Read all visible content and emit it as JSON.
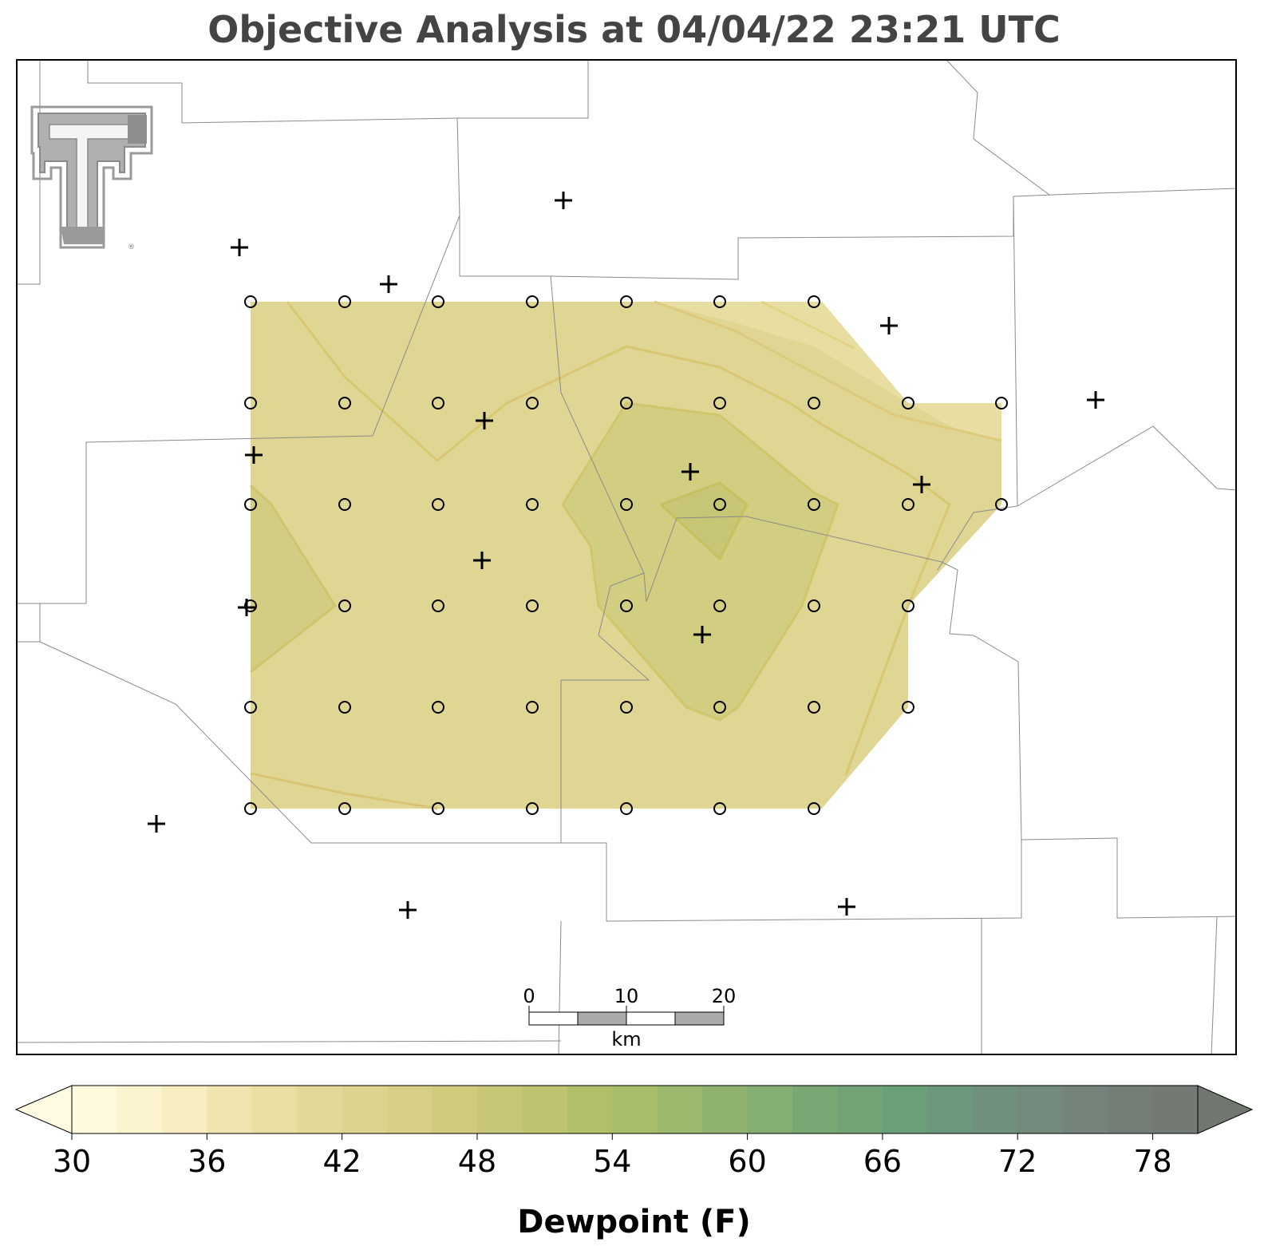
{
  "title": "Objective Analysis at 04/04/22 23:21 UTC",
  "colorbar": {
    "label": "Dewpoint (F)",
    "min": 30,
    "max": 80,
    "step": 2,
    "tick_labels": [
      "30",
      "36",
      "42",
      "48",
      "54",
      "60",
      "66",
      "72",
      "78"
    ],
    "extend": "both",
    "colors": [
      "#fff9dd",
      "#fbf4cf",
      "#f6edc0",
      "#f0e5b0",
      "#eadea2",
      "#e4d897",
      "#ddd38e",
      "#d8cf86",
      "#d0ca7d",
      "#c8c677",
      "#bec36f",
      "#b2bf69",
      "#a8bd6a",
      "#9bb86c",
      "#8fb36f",
      "#84ae72",
      "#79a874",
      "#71a377",
      "#69a07a",
      "#6b987c",
      "#70907c",
      "#738a7c",
      "#75847a",
      "#747e77",
      "#737973"
    ],
    "under_color": "#fffbe3",
    "over_color": "#6f776e"
  },
  "scale_bar": {
    "labels": [
      "0",
      "10",
      "20"
    ],
    "unit": "km"
  },
  "logo": {
    "name": "texas-tech-double-t-logo",
    "registered_mark": "®"
  }
}
